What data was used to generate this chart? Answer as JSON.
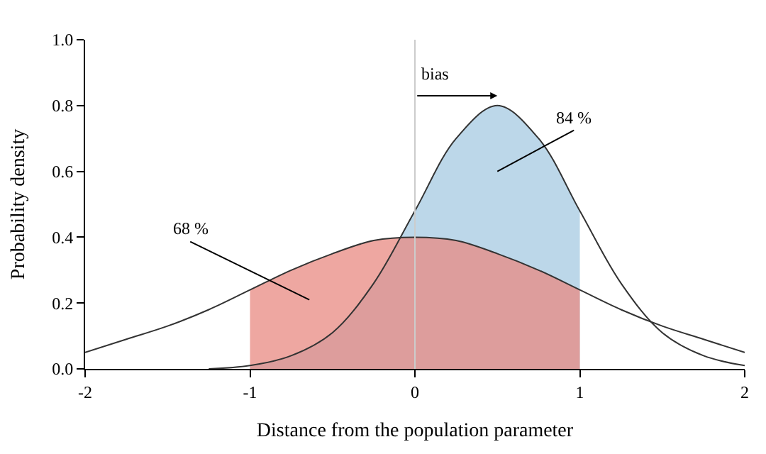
{
  "chart_data": {
    "type": "line",
    "xlabel": "Distance from the population parameter",
    "ylabel": "Probability density",
    "xlim": [
      -2,
      2
    ],
    "xticks": [
      -2,
      -1,
      0,
      1,
      2
    ],
    "ylim": [
      0,
      1
    ],
    "yticks": [
      {
        "value": 0,
        "label": "0.0"
      },
      {
        "value": 0.2,
        "label": "0.2"
      },
      {
        "value": 0.4,
        "label": "0.4"
      },
      {
        "value": 0.6,
        "label": "0.6"
      },
      {
        "value": 0.8,
        "label": "0.8"
      },
      {
        "value": 1,
        "label": "1.0"
      }
    ],
    "marker": "none",
    "line_style": "solid",
    "series": [
      {
        "type": "area",
        "color": "#a6c9e2",
        "x": [
          -1,
          -0.75,
          -0.5,
          -0.25,
          0,
          0.25,
          0.5,
          0.75,
          1
        ],
        "values": [
          0.01,
          0.04,
          0.11,
          0.26,
          0.48,
          0.7,
          0.8,
          0.7,
          0.48
        ]
      },
      {
        "type": "area",
        "color": "#e88a82",
        "x": [
          -1,
          -0.75,
          -0.5,
          -0.25,
          0,
          0.25,
          0.5,
          0.75,
          1
        ],
        "values": [
          0.24,
          0.3,
          0.35,
          0.39,
          0.4,
          0.39,
          0.35,
          0.3,
          0.24
        ]
      },
      {
        "color": "#333333",
        "x": [
          -2,
          -1.75,
          -1.5,
          -1.25,
          -1,
          -0.75,
          -0.5,
          -0.25,
          0,
          0.25,
          0.5,
          0.75,
          1,
          1.25,
          1.5,
          1.75,
          2
        ],
        "values": [
          0.05,
          0.09,
          0.13,
          0.18,
          0.24,
          0.3,
          0.35,
          0.39,
          0.4,
          0.39,
          0.35,
          0.3,
          0.24,
          0.18,
          0.13,
          0.09,
          0.05
        ]
      },
      {
        "color": "#333333",
        "x": [
          -1.25,
          -1,
          -0.75,
          -0.5,
          -0.25,
          0,
          0.25,
          0.5,
          0.75,
          1,
          1.25,
          1.5,
          1.75,
          2
        ],
        "values": [
          0,
          0.01,
          0.04,
          0.11,
          0.26,
          0.48,
          0.7,
          0.8,
          0.7,
          0.48,
          0.26,
          0.11,
          0.04,
          0.01
        ]
      }
    ],
    "ref_lines": [
      {
        "axis": "x",
        "value": 0,
        "color": "#cccccc"
      }
    ],
    "annotations": [
      "bias",
      "68 %",
      "84 %"
    ]
  }
}
